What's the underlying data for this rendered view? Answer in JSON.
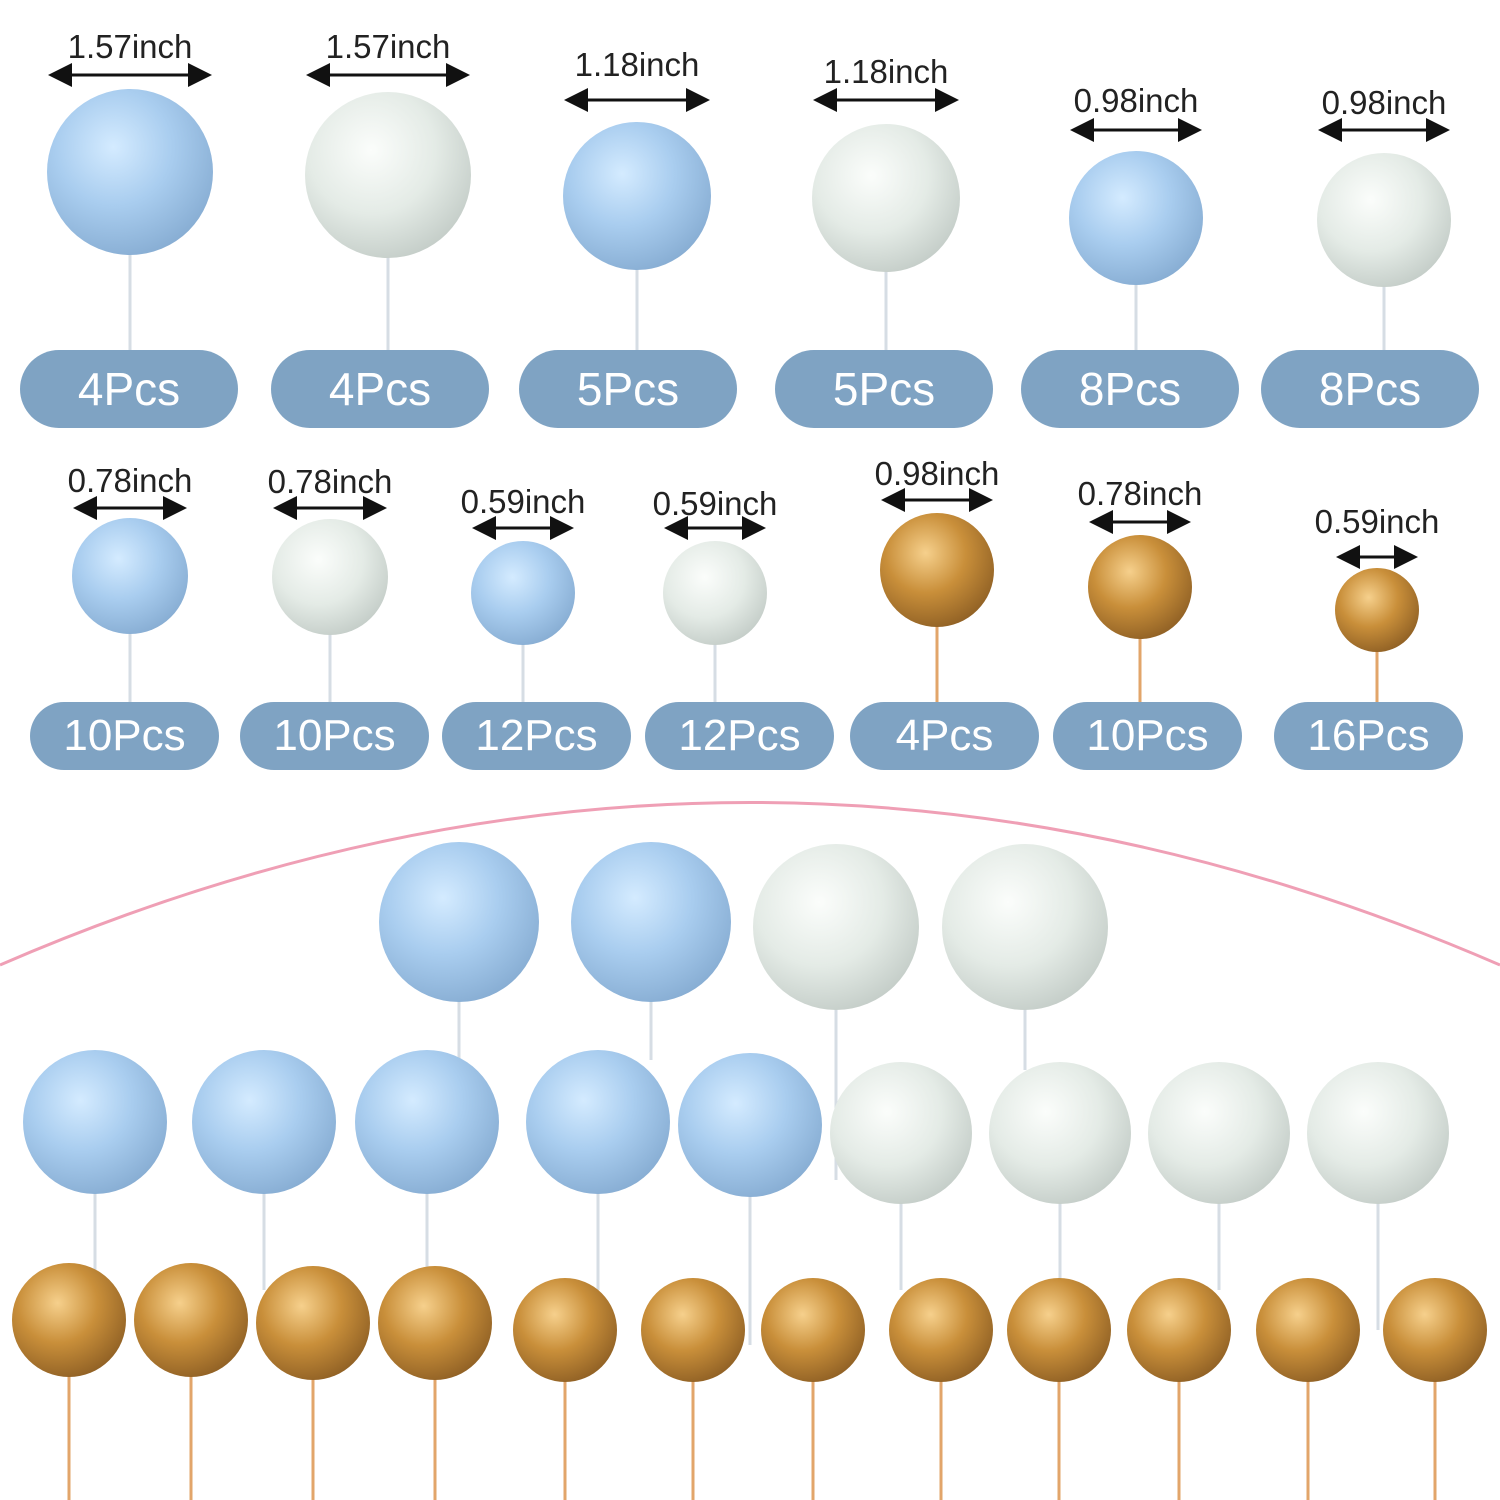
{
  "colors": {
    "badge": "#7fa3c3",
    "blue_ball": "#a9cdef",
    "white_ball": "#e4ebe6",
    "gold_ball": "#c98f3a",
    "arc": "#ef9fb5",
    "gold_stem": "#e2a56a",
    "clear_stem": "#d6dde4"
  },
  "row1": [
    {
      "size": "1.57inch",
      "count": "4Pcs",
      "color": "blue"
    },
    {
      "size": "1.57inch",
      "count": "4Pcs",
      "color": "white"
    },
    {
      "size": "1.18inch",
      "count": "5Pcs",
      "color": "blue"
    },
    {
      "size": "1.18inch",
      "count": "5Pcs",
      "color": "white"
    },
    {
      "size": "0.98inch",
      "count": "8Pcs",
      "color": "blue"
    },
    {
      "size": "0.98inch",
      "count": "8Pcs",
      "color": "white"
    }
  ],
  "row2": [
    {
      "size": "0.78inch",
      "count": "10Pcs",
      "color": "blue"
    },
    {
      "size": "0.78inch",
      "count": "10Pcs",
      "color": "white"
    },
    {
      "size": "0.59inch",
      "count": "12Pcs",
      "color": "blue"
    },
    {
      "size": "0.59inch",
      "count": "12Pcs",
      "color": "white"
    },
    {
      "size": "0.98inch",
      "count": "4Pcs",
      "color": "gold"
    },
    {
      "size": "0.78inch",
      "count": "10Pcs",
      "color": "gold"
    },
    {
      "size": "0.59inch",
      "count": "16Pcs",
      "color": "gold"
    }
  ]
}
